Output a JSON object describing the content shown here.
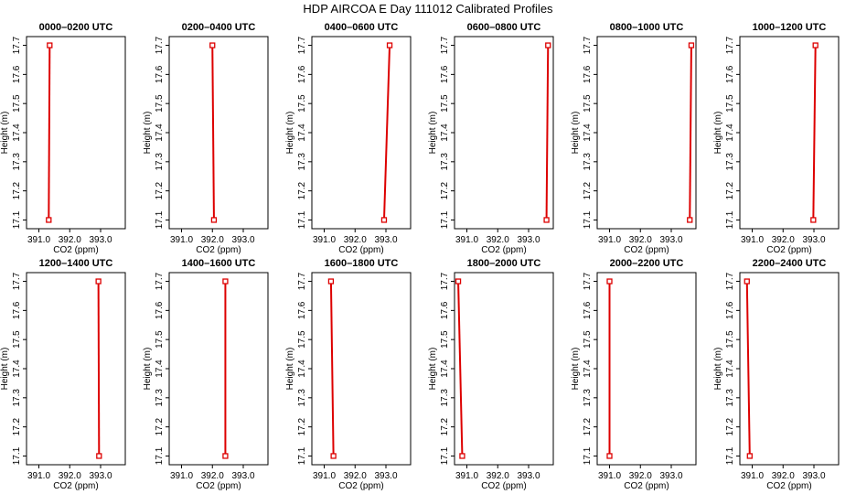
{
  "page": {
    "title": "HDP AIRCOA E  Day 111012  Calibrated Profiles"
  },
  "style": {
    "line_color": "#dd0000",
    "axis_color": "#000000"
  },
  "chart_data": [
    {
      "type": "line",
      "title": "0000–0200 UTC",
      "xlabel": "CO2 (ppm)",
      "ylabel": "Height (m)",
      "xlim": [
        390.6,
        393.8
      ],
      "ylim": [
        17.07,
        17.73
      ],
      "xticks": [
        "391.0",
        "392.0",
        "393.0"
      ],
      "xtick_values": [
        391.0,
        392.0,
        393.0
      ],
      "yticks": [
        "17.1",
        "17.2",
        "17.3",
        "17.4",
        "17.5",
        "17.6",
        "17.7"
      ],
      "yticks_values": [
        17.1,
        17.2,
        17.3,
        17.4,
        17.5,
        17.6,
        17.7
      ],
      "x": [
        391.32,
        391.35
      ],
      "y": [
        17.1,
        17.7
      ]
    },
    {
      "type": "line",
      "title": "0200–0400 UTC",
      "xlabel": "CO2 (ppm)",
      "ylabel": "Height (m)",
      "xlim": [
        390.6,
        393.8
      ],
      "ylim": [
        17.07,
        17.73
      ],
      "xticks": [
        "391.0",
        "392.0",
        "393.0"
      ],
      "xtick_values": [
        391.0,
        392.0,
        393.0
      ],
      "yticks": [
        "17.1",
        "17.2",
        "17.3",
        "17.4",
        "17.5",
        "17.6",
        "17.7"
      ],
      "yticks_values": [
        17.1,
        17.2,
        17.3,
        17.4,
        17.5,
        17.6,
        17.7
      ],
      "x": [
        392.05,
        392.0
      ],
      "y": [
        17.1,
        17.7
      ]
    },
    {
      "type": "line",
      "title": "0400–0600 UTC",
      "xlabel": "CO2 (ppm)",
      "ylabel": "Height (m)",
      "xlim": [
        390.6,
        393.8
      ],
      "ylim": [
        17.07,
        17.73
      ],
      "xticks": [
        "391.0",
        "392.0",
        "393.0"
      ],
      "xtick_values": [
        391.0,
        392.0,
        393.0
      ],
      "yticks": [
        "17.1",
        "17.2",
        "17.3",
        "17.4",
        "17.5",
        "17.6",
        "17.7"
      ],
      "yticks_values": [
        17.1,
        17.2,
        17.3,
        17.4,
        17.5,
        17.6,
        17.7
      ],
      "x": [
        392.94,
        393.12
      ],
      "y": [
        17.1,
        17.7
      ]
    },
    {
      "type": "line",
      "title": "0600–0800 UTC",
      "xlabel": "CO2 (ppm)",
      "ylabel": "Height (m)",
      "xlim": [
        390.6,
        393.8
      ],
      "ylim": [
        17.07,
        17.73
      ],
      "xticks": [
        "391.0",
        "392.0",
        "393.0"
      ],
      "xtick_values": [
        391.0,
        392.0,
        393.0
      ],
      "yticks": [
        "17.1",
        "17.2",
        "17.3",
        "17.4",
        "17.5",
        "17.6",
        "17.7"
      ],
      "yticks_values": [
        17.1,
        17.2,
        17.3,
        17.4,
        17.5,
        17.6,
        17.7
      ],
      "x": [
        393.58,
        393.63
      ],
      "y": [
        17.1,
        17.7
      ]
    },
    {
      "type": "line",
      "title": "0800–1000 UTC",
      "xlabel": "CO2 (ppm)",
      "ylabel": "Height (m)",
      "xlim": [
        390.6,
        393.8
      ],
      "ylim": [
        17.07,
        17.73
      ],
      "xticks": [
        "391.0",
        "392.0",
        "393.0"
      ],
      "xtick_values": [
        391.0,
        392.0,
        393.0
      ],
      "yticks": [
        "17.1",
        "17.2",
        "17.3",
        "17.4",
        "17.5",
        "17.6",
        "17.7"
      ],
      "yticks_values": [
        17.1,
        17.2,
        17.3,
        17.4,
        17.5,
        17.6,
        17.7
      ],
      "x": [
        393.6,
        393.65
      ],
      "y": [
        17.1,
        17.7
      ]
    },
    {
      "type": "line",
      "title": "1000–1200 UTC",
      "xlabel": "CO2 (ppm)",
      "ylabel": "Height (m)",
      "xlim": [
        390.6,
        393.8
      ],
      "ylim": [
        17.07,
        17.73
      ],
      "xticks": [
        "391.0",
        "392.0",
        "393.0"
      ],
      "xtick_values": [
        391.0,
        392.0,
        393.0
      ],
      "yticks": [
        "17.1",
        "17.2",
        "17.3",
        "17.4",
        "17.5",
        "17.6",
        "17.7"
      ],
      "yticks_values": [
        17.1,
        17.2,
        17.3,
        17.4,
        17.5,
        17.6,
        17.7
      ],
      "x": [
        392.98,
        393.05
      ],
      "y": [
        17.1,
        17.7
      ]
    },
    {
      "type": "line",
      "title": "1200–1400 UTC",
      "xlabel": "CO2 (ppm)",
      "ylabel": "Height (m)",
      "xlim": [
        390.6,
        393.8
      ],
      "ylim": [
        17.07,
        17.73
      ],
      "xticks": [
        "391.0",
        "392.0",
        "393.0"
      ],
      "xtick_values": [
        391.0,
        392.0,
        393.0
      ],
      "yticks": [
        "17.1",
        "17.2",
        "17.3",
        "17.4",
        "17.5",
        "17.6",
        "17.7"
      ],
      "yticks_values": [
        17.1,
        17.2,
        17.3,
        17.4,
        17.5,
        17.6,
        17.7
      ],
      "x": [
        392.95,
        392.93
      ],
      "y": [
        17.1,
        17.7
      ]
    },
    {
      "type": "line",
      "title": "1400–1600 UTC",
      "xlabel": "CO2 (ppm)",
      "ylabel": "Height (m)",
      "xlim": [
        390.6,
        393.8
      ],
      "ylim": [
        17.07,
        17.73
      ],
      "xticks": [
        "391.0",
        "392.0",
        "393.0"
      ],
      "xtick_values": [
        391.0,
        392.0,
        393.0
      ],
      "yticks": [
        "17.1",
        "17.2",
        "17.3",
        "17.4",
        "17.5",
        "17.6",
        "17.7"
      ],
      "yticks_values": [
        17.1,
        17.2,
        17.3,
        17.4,
        17.5,
        17.6,
        17.7
      ],
      "x": [
        392.42,
        392.42
      ],
      "y": [
        17.1,
        17.7
      ]
    },
    {
      "type": "line",
      "title": "1600–1800 UTC",
      "xlabel": "CO2 (ppm)",
      "ylabel": "Height (m)",
      "xlim": [
        390.6,
        393.8
      ],
      "ylim": [
        17.07,
        17.73
      ],
      "xticks": [
        "391.0",
        "392.0",
        "393.0"
      ],
      "xtick_values": [
        391.0,
        392.0,
        393.0
      ],
      "yticks": [
        "17.1",
        "17.2",
        "17.3",
        "17.4",
        "17.5",
        "17.6",
        "17.7"
      ],
      "yticks_values": [
        17.1,
        17.2,
        17.3,
        17.4,
        17.5,
        17.6,
        17.7
      ],
      "x": [
        391.3,
        391.22
      ],
      "y": [
        17.1,
        17.7
      ]
    },
    {
      "type": "line",
      "title": "1800–2000 UTC",
      "xlabel": "CO2 (ppm)",
      "ylabel": "Height (m)",
      "xlim": [
        390.6,
        393.8
      ],
      "ylim": [
        17.07,
        17.73
      ],
      "xticks": [
        "391.0",
        "392.0",
        "393.0"
      ],
      "xtick_values": [
        391.0,
        392.0,
        393.0
      ],
      "yticks": [
        "17.1",
        "17.2",
        "17.3",
        "17.4",
        "17.5",
        "17.6",
        "17.7"
      ],
      "yticks_values": [
        17.1,
        17.2,
        17.3,
        17.4,
        17.5,
        17.6,
        17.7
      ],
      "x": [
        390.85,
        390.72
      ],
      "y": [
        17.1,
        17.7
      ]
    },
    {
      "type": "line",
      "title": "2000–2200 UTC",
      "xlabel": "CO2 (ppm)",
      "ylabel": "Height (m)",
      "xlim": [
        390.6,
        393.8
      ],
      "ylim": [
        17.07,
        17.73
      ],
      "xticks": [
        "391.0",
        "392.0",
        "393.0"
      ],
      "xtick_values": [
        391.0,
        392.0,
        393.0
      ],
      "yticks": [
        "17.1",
        "17.2",
        "17.3",
        "17.4",
        "17.5",
        "17.6",
        "17.7"
      ],
      "yticks_values": [
        17.1,
        17.2,
        17.3,
        17.4,
        17.5,
        17.6,
        17.7
      ],
      "x": [
        391.0,
        391.0
      ],
      "y": [
        17.1,
        17.7
      ]
    },
    {
      "type": "line",
      "title": "2200–2400 UTC",
      "xlabel": "CO2 (ppm)",
      "ylabel": "Height (m)",
      "xlim": [
        390.6,
        393.8
      ],
      "ylim": [
        17.07,
        17.73
      ],
      "xticks": [
        "391.0",
        "392.0",
        "393.0"
      ],
      "xtick_values": [
        391.0,
        392.0,
        393.0
      ],
      "yticks": [
        "17.1",
        "17.2",
        "17.3",
        "17.4",
        "17.5",
        "17.6",
        "17.7"
      ],
      "yticks_values": [
        17.1,
        17.2,
        17.3,
        17.4,
        17.5,
        17.6,
        17.7
      ],
      "x": [
        390.92,
        390.83
      ],
      "y": [
        17.1,
        17.7
      ]
    }
  ]
}
